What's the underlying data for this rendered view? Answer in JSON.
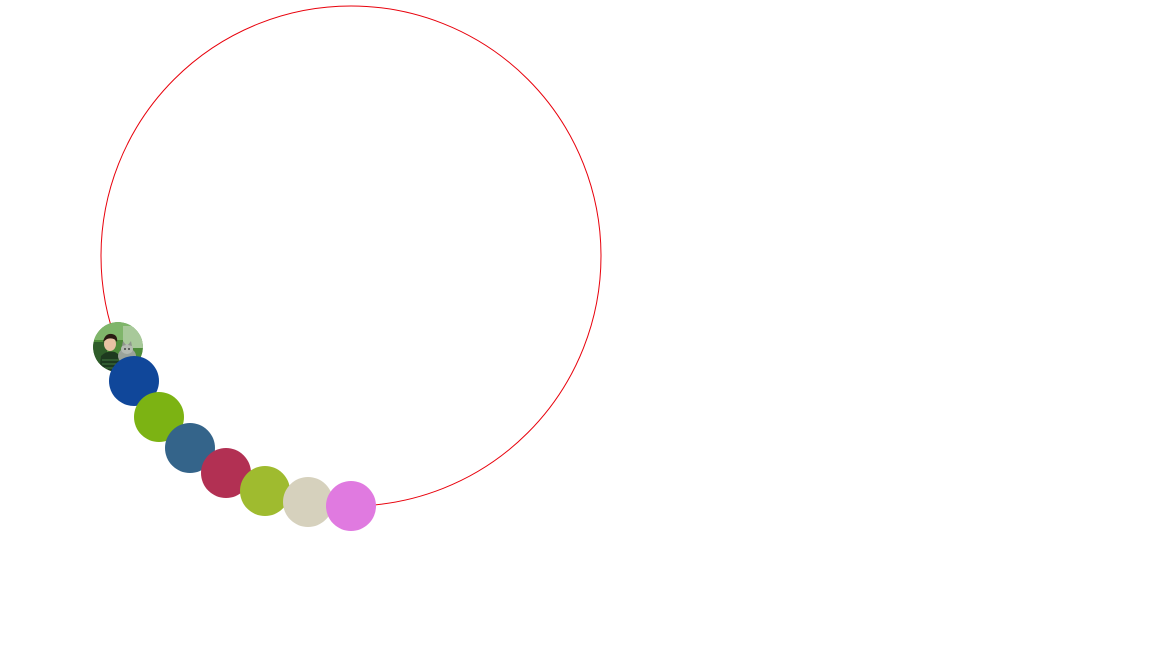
{
  "ring": {
    "stroke_color": "#e8000b"
  },
  "orbs": [
    {
      "kind": "photo",
      "icon": "person-with-cat-photo-icon"
    },
    {
      "kind": "color",
      "color": "#10479a"
    },
    {
      "kind": "color",
      "color": "#7cb313"
    },
    {
      "kind": "color",
      "color": "#34648a"
    },
    {
      "kind": "color",
      "color": "#b23053"
    },
    {
      "kind": "color",
      "color": "#9fbb2f"
    },
    {
      "kind": "color",
      "color": "#d6d1bd"
    },
    {
      "kind": "color",
      "color": "#e07ae0"
    }
  ]
}
